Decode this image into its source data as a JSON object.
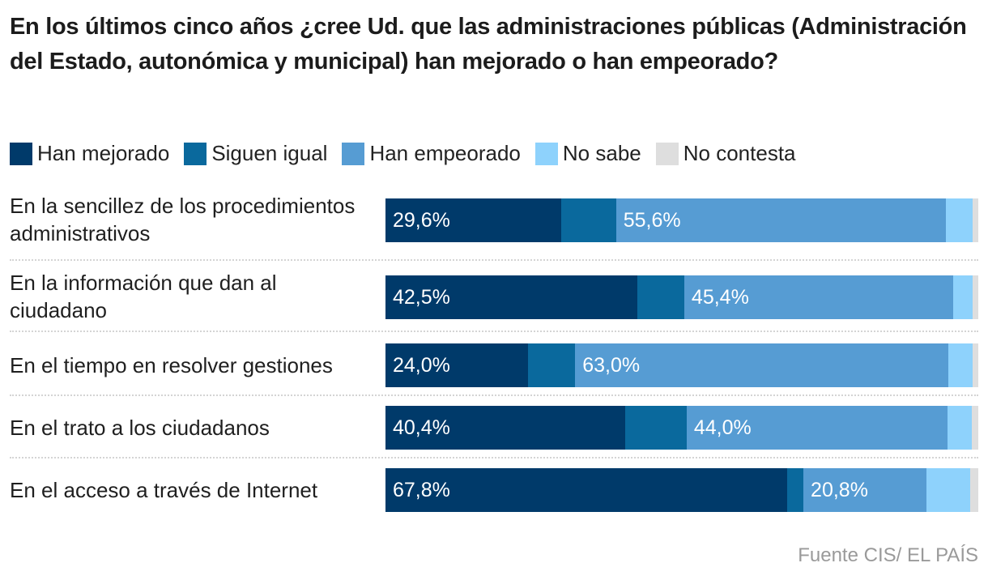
{
  "chart_data": {
    "type": "bar",
    "orientation": "horizontal",
    "stacked": true,
    "normalized": true,
    "title": "En los últimos cinco años ¿cree Ud. que las administraciones públicas (Administración del Estado, autonómica y municipal) han mejorado o han empeorado?",
    "xlabel": "",
    "ylabel": "",
    "xlim": [
      0,
      100
    ],
    "grid": false,
    "legend_position": "top-left",
    "categories": [
      "En la sencillez de los procedimientos administrativos",
      "En la información que dan al ciudadano",
      "En el tiempo en resolver gestiones",
      "En el trato a los ciudadanos",
      "En el acceso a través de Internet"
    ],
    "series": [
      {
        "name": "Han mejorado",
        "color": "#003a6a",
        "values": [
          29.6,
          42.5,
          24.0,
          40.4,
          67.8
        ],
        "labels": [
          "29,6%",
          "42,5%",
          "24,0%",
          "40,4%",
          "67,8%"
        ]
      },
      {
        "name": "Siguen igual",
        "color": "#0a699d",
        "values": [
          9.3,
          7.9,
          8.0,
          10.4,
          2.7
        ],
        "labels": [
          "",
          "",
          "",
          "",
          ""
        ]
      },
      {
        "name": "Han empeorado",
        "color": "#569cd3",
        "values": [
          55.6,
          45.4,
          63.0,
          44.0,
          20.8
        ],
        "labels": [
          "55,6%",
          "45,4%",
          "63,0%",
          "44,0%",
          "20,8%"
        ]
      },
      {
        "name": "No sabe",
        "color": "#8ed2fc",
        "values": [
          4.6,
          3.3,
          4.0,
          4.1,
          7.3
        ],
        "labels": [
          "",
          "",
          "",
          "",
          ""
        ]
      },
      {
        "name": "No contesta",
        "color": "#dedede",
        "values": [
          0.9,
          0.9,
          1.0,
          1.1,
          1.4
        ],
        "labels": [
          "",
          "",
          "",
          "",
          ""
        ]
      }
    ],
    "source": "Fuente CIS/ EL PAÍS"
  },
  "title": "En los últimos cinco años ¿cree Ud. que las administraciones públicas (Administración del Estado, autonómica y municipal) han mejorado o han empeorado?",
  "legend": [
    {
      "label": "Han mejorado",
      "color": "#003a6a"
    },
    {
      "label": "Siguen igual",
      "color": "#0a699d"
    },
    {
      "label": "Han empeorado",
      "color": "#569cd3"
    },
    {
      "label": "No sabe",
      "color": "#8ed2fc"
    },
    {
      "label": "No contesta",
      "color": "#dedede"
    }
  ],
  "source": "Fuente CIS/ EL PAÍS"
}
